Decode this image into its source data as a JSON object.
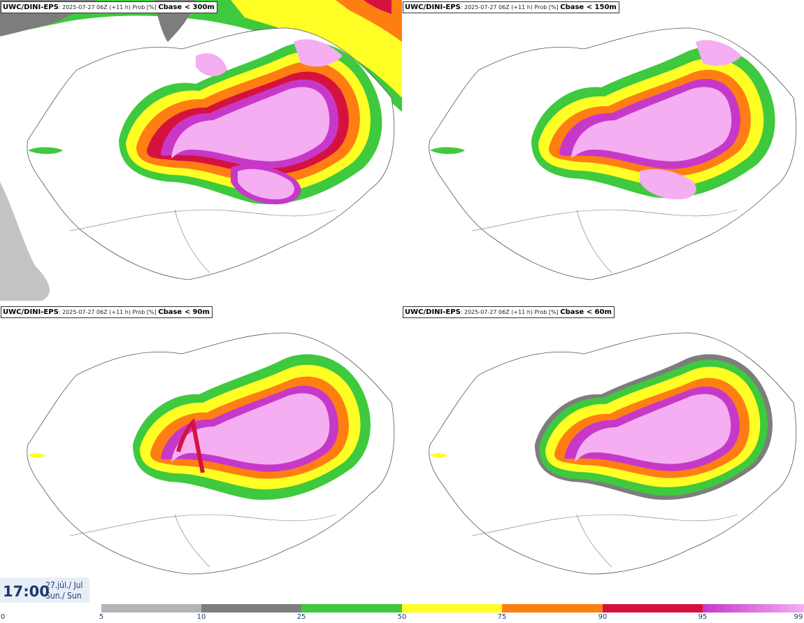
{
  "panels": [
    {
      "model": "UWC/DINI-EPS",
      "detail": ": 2025-07-27 06Z (+11 h) Prob [%] ",
      "threshold": "Cbase < 300m"
    },
    {
      "model": "UWC/DINI-EPS",
      "detail": ": 2025-07-27 06Z (+11 h) Prob [%] ",
      "threshold": "Cbase < 150m"
    },
    {
      "model": "UWC/DINI-EPS",
      "detail": ": 2025-07-27 06Z (+11 h) Prob [%] ",
      "threshold": "Cbase < 90m"
    },
    {
      "model": "UWC/DINI-EPS",
      "detail": ": 2025-07-27 06Z (+11 h) Prob [%] ",
      "threshold": "Cbase < 60m"
    }
  ],
  "valid_time": {
    "time": "17:00",
    "date_line1": "27.júl./ Jul",
    "date_line2": "Sun./ Sun"
  },
  "legend": {
    "ticks": [
      "0",
      "5",
      "10",
      "25",
      "50",
      "75",
      "90",
      "95",
      "99"
    ],
    "colors": [
      "#b4b4b4",
      "#7d7d7d",
      "#3ec93e",
      "#ffff26",
      "#ff7e13",
      "#d5123f",
      "#c738c9",
      "#f4aef1"
    ]
  },
  "colors": {
    "c5": "#b4b4b4",
    "c10": "#7d7d7d",
    "c25": "#3ec93e",
    "c50": "#ffff26",
    "c75": "#ff7e13",
    "c90": "#d5123f",
    "c95": "#c738c9",
    "c99": "#f4aef1"
  }
}
